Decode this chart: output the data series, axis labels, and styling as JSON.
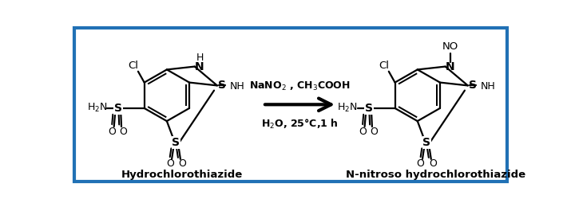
{
  "bg_color": "#ffffff",
  "border_color": "#2171b5",
  "border_lw": 3,
  "text_color": "#000000",
  "reagent_line1": "NaNO$_2$ , CH$_3$COOH",
  "reagent_line2": "H$_2$O, 25°C,1 h",
  "label_left": "Hydrochlorothiazide",
  "label_right": "N-nitroso hydrochlorothiazide",
  "bond_lw": 1.6,
  "font_size_atom": 9,
  "font_size_label": 9
}
